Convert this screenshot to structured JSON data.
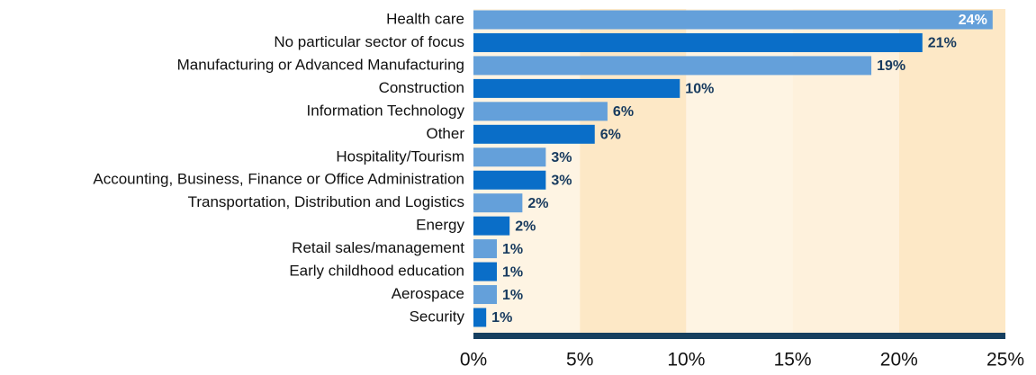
{
  "chart_data": {
    "type": "bar",
    "orientation": "horizontal",
    "categories": [
      "Health care",
      "No particular sector of focus",
      "Manufacturing or Advanced Manufacturing",
      "Construction",
      "Information Technology",
      "Other",
      "Hospitality/Tourism",
      "Accounting, Business, Finance or Office Administration",
      "Transportation, Distribution and Logistics",
      "Energy",
      "Retail sales/management",
      "Early childhood education",
      "Aerospace",
      "Security"
    ],
    "values": [
      24.4,
      21.1,
      18.7,
      9.7,
      6.3,
      5.7,
      3.4,
      3.4,
      2.3,
      1.7,
      1.1,
      1.1,
      1.1,
      0.6
    ],
    "value_labels": [
      "24%",
      "21%",
      "19%",
      "10%",
      "6%",
      "6%",
      "3%",
      "3%",
      "2%",
      "2%",
      "1%",
      "1%",
      "1%",
      "1%"
    ],
    "colors": [
      "#64a0da",
      "#0a6ec8",
      "#64a0da",
      "#0a6ec8",
      "#64a0da",
      "#0a6ec8",
      "#64a0da",
      "#0a6ec8",
      "#64a0da",
      "#0a6ec8",
      "#64a0da",
      "#0a6ec8",
      "#64a0da",
      "#0a6ec8"
    ],
    "xlim": [
      0,
      25
    ],
    "xticks": [
      {
        "value": 0,
        "label": "0%"
      },
      {
        "value": 5,
        "label": "5%"
      },
      {
        "value": 10,
        "label": "10%"
      },
      {
        "value": 15,
        "label": "15%"
      },
      {
        "value": 20,
        "label": "20%"
      },
      {
        "value": 25,
        "label": "25%"
      }
    ],
    "band_colors": [
      "#fef4e3",
      "#fde8c6",
      "#fef4e3",
      "#fef1dc",
      "#fde8c6"
    ],
    "axis_color": "#163f5f"
  }
}
